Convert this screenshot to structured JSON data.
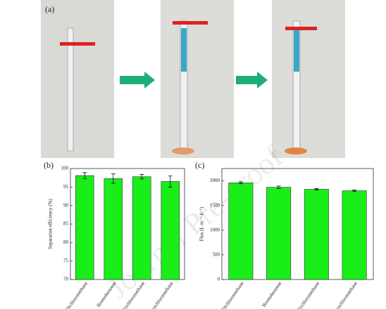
{
  "panel_label": "(a)",
  "watermark": "Journal Pre-proof",
  "chart_data": [
    {
      "type": "bar",
      "panel_label": "(b)",
      "y_label": "Separation efficiency (%)",
      "categories": [
        "Dichloromethane",
        "Bromobenzene",
        "Trichloromethane",
        "Tetrachloromethane"
      ],
      "values": [
        98.1,
        97.3,
        97.8,
        96.5
      ],
      "errors": [
        0.8,
        1.3,
        0.6,
        1.5
      ],
      "color": "#19ee19",
      "ylim": [
        70,
        100
      ],
      "yticks": [
        70,
        75,
        80,
        85,
        90,
        95,
        100
      ]
    },
    {
      "type": "bar",
      "panel_label": "(c)",
      "y_label": "Flux (L·m⁻²·h⁻¹)",
      "categories": [
        "Dichloromethane",
        "Bromobenzene",
        "Trichloromethane",
        "Tetrachloromethane"
      ],
      "values": [
        1960,
        1870,
        1830,
        1800
      ],
      "errors": [
        20,
        25,
        15,
        15
      ],
      "color": "#19ee19",
      "ylim": [
        0,
        2250
      ],
      "yticks": [
        0,
        500,
        1000,
        1500,
        2000
      ]
    }
  ]
}
